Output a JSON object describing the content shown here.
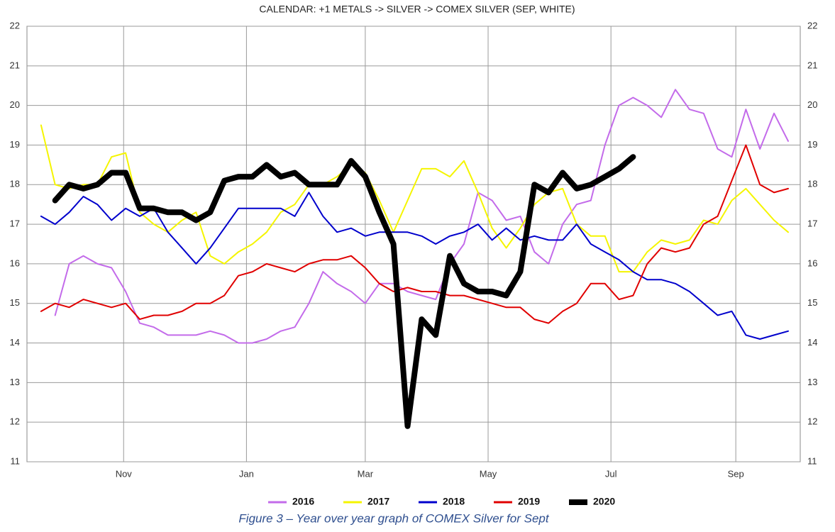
{
  "chart_data": {
    "type": "line",
    "title": "CALENDAR: +1 METALS -> SILVER -> COMEX SILVER (SEP, WHITE)",
    "caption": "Figure 3 – Year over year graph of COMEX Silver for Sept",
    "x": [
      20,
      27,
      34,
      41,
      48,
      55,
      62,
      69,
      76,
      83,
      90,
      97,
      104,
      111,
      118,
      125,
      132,
      139,
      146,
      153,
      160,
      167,
      174,
      181,
      188,
      195,
      202,
      209,
      216,
      223,
      230,
      237,
      244,
      251,
      258,
      265,
      272,
      279,
      286,
      293,
      300,
      307,
      314,
      321,
      328,
      335,
      342,
      349,
      356,
      363,
      370,
      377,
      384,
      391
    ],
    "xlim": [
      13,
      397
    ],
    "xticks": [
      {
        "value": 61,
        "label": "Nov"
      },
      {
        "value": 122,
        "label": "Jan"
      },
      {
        "value": 181,
        "label": "Mar"
      },
      {
        "value": 242,
        "label": "May"
      },
      {
        "value": 303,
        "label": "Jul"
      },
      {
        "value": 365,
        "label": "Sep"
      }
    ],
    "ylim": [
      11,
      22
    ],
    "yticks": [
      11,
      12,
      13,
      14,
      15,
      16,
      17,
      18,
      19,
      20,
      21,
      22
    ],
    "grid": true,
    "legend": "bottom",
    "series": [
      {
        "name": "2016",
        "color": "#c36bea",
        "width": 2,
        "values": [
          null,
          14.7,
          16.0,
          16.2,
          16.0,
          15.9,
          15.3,
          14.5,
          14.4,
          14.2,
          14.2,
          14.2,
          14.3,
          14.2,
          14.0,
          14.0,
          14.1,
          14.3,
          14.4,
          15.0,
          15.8,
          15.5,
          15.3,
          15.0,
          15.5,
          15.5,
          15.3,
          15.2,
          15.1,
          16.0,
          16.5,
          17.8,
          17.6,
          17.1,
          17.2,
          16.3,
          16.0,
          17.0,
          17.5,
          17.6,
          19.0,
          20.0,
          20.2,
          20.0,
          19.7,
          20.4,
          19.9,
          19.8,
          18.9,
          18.7,
          19.9,
          18.9,
          19.8,
          19.1
        ]
      },
      {
        "name": "2017",
        "color": "#f5f500",
        "width": 2,
        "values": [
          19.5,
          18.0,
          17.9,
          18.0,
          18.0,
          18.7,
          18.8,
          17.3,
          17.0,
          16.8,
          17.1,
          17.3,
          16.2,
          16.0,
          16.3,
          16.5,
          16.8,
          17.3,
          17.5,
          18.0,
          18.0,
          18.2,
          18.5,
          18.3,
          17.6,
          16.8,
          17.6,
          18.4,
          18.4,
          18.2,
          18.6,
          17.8,
          16.9,
          16.4,
          16.9,
          17.5,
          17.8,
          17.9,
          17.0,
          16.7,
          16.7,
          15.8,
          15.8,
          16.3,
          16.6,
          16.5,
          16.6,
          17.1,
          17.0,
          17.6,
          17.9,
          17.5,
          17.1,
          16.8
        ]
      },
      {
        "name": "2018",
        "color": "#0000cc",
        "width": 2,
        "values": [
          17.2,
          17.0,
          17.3,
          17.7,
          17.5,
          17.1,
          17.4,
          17.2,
          17.4,
          16.8,
          16.4,
          16.0,
          16.4,
          16.9,
          17.4,
          17.4,
          17.4,
          17.4,
          17.2,
          17.8,
          17.2,
          16.8,
          16.9,
          16.7,
          16.8,
          16.8,
          16.8,
          16.7,
          16.5,
          16.7,
          16.8,
          17.0,
          16.6,
          16.9,
          16.6,
          16.7,
          16.6,
          16.6,
          17.0,
          16.5,
          16.3,
          16.1,
          15.8,
          15.6,
          15.6,
          15.5,
          15.3,
          15.0,
          14.7,
          14.8,
          14.2,
          14.1,
          14.2,
          14.3
        ]
      },
      {
        "name": "2019",
        "color": "#e00000",
        "width": 2,
        "values": [
          14.8,
          15.0,
          14.9,
          15.1,
          15.0,
          14.9,
          15.0,
          14.6,
          14.7,
          14.7,
          14.8,
          15.0,
          15.0,
          15.2,
          15.7,
          15.8,
          16.0,
          15.9,
          15.8,
          16.0,
          16.1,
          16.1,
          16.2,
          15.9,
          15.5,
          15.3,
          15.4,
          15.3,
          15.3,
          15.2,
          15.2,
          15.1,
          15.0,
          14.9,
          14.9,
          14.6,
          14.5,
          14.8,
          15.0,
          15.5,
          15.5,
          15.1,
          15.2,
          16.0,
          16.4,
          16.3,
          16.4,
          17.0,
          17.2,
          18.1,
          19.0,
          18.0,
          17.8,
          17.9
        ]
      },
      {
        "name": "2020",
        "color": "#000000",
        "width": 8,
        "values": [
          null,
          17.6,
          18.0,
          17.9,
          18.0,
          18.3,
          18.3,
          17.4,
          17.4,
          17.3,
          17.3,
          17.1,
          17.3,
          18.1,
          18.2,
          18.2,
          18.5,
          18.2,
          18.3,
          18.0,
          18.0,
          18.0,
          18.6,
          18.2,
          17.3,
          16.5,
          11.9,
          14.6,
          14.2,
          16.2,
          15.5,
          15.3,
          15.3,
          15.2,
          15.8,
          18.0,
          17.8,
          18.3,
          17.9,
          18.0,
          18.2,
          18.4,
          18.7,
          null,
          null,
          null,
          null,
          null,
          null,
          null,
          null,
          null,
          null,
          null
        ]
      }
    ]
  }
}
